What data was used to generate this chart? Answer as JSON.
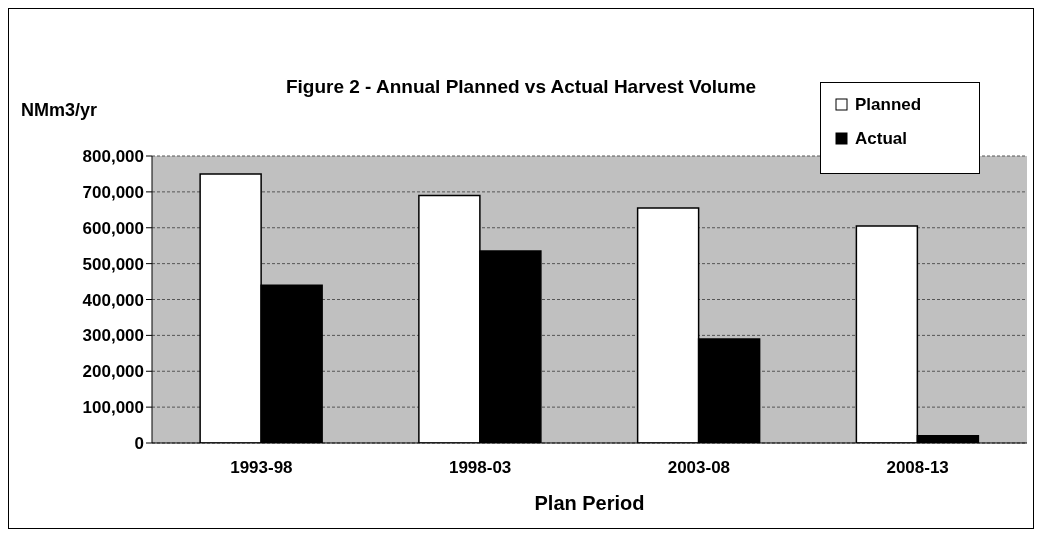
{
  "chart_data": {
    "type": "bar",
    "title": "Figure 2 - Annual Planned vs Actual Harvest Volume",
    "ylabel": "NMm3/yr",
    "xlabel": "Plan Period",
    "categories": [
      "1993-98",
      "1998-03",
      "2003-08",
      "2008-13"
    ],
    "series": [
      {
        "name": "Planned",
        "color": "#ffffff",
        "values": [
          750000,
          690000,
          655000,
          605000
        ]
      },
      {
        "name": "Actual",
        "color": "#000000",
        "values": [
          440000,
          535000,
          290000,
          20000
        ]
      }
    ],
    "ylim": [
      0,
      800000
    ],
    "yticks": [
      0,
      {
        "value": 100000,
        "label": "100,000"
      },
      {
        "value": 200000,
        "label": "200,000"
      },
      {
        "value": 300000,
        "label": "300,000"
      },
      {
        "value": 400000,
        "label": "400,000"
      },
      {
        "value": 500000,
        "label": "500,000"
      },
      {
        "value": 600000,
        "label": "600,000"
      },
      {
        "value": 700000,
        "label": "700,000"
      },
      {
        "value": 800000,
        "label": "800,000"
      }
    ],
    "grid": "y",
    "legend": "top right"
  }
}
